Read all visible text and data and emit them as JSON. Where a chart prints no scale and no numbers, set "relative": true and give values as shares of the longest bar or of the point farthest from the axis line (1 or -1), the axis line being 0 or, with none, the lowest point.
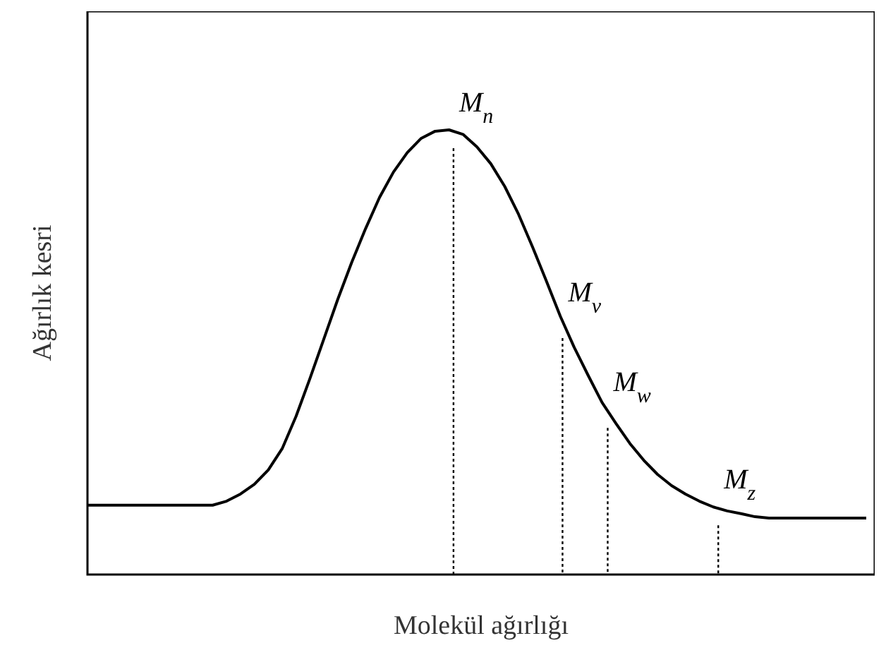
{
  "chart_data": {
    "type": "line",
    "relative": true,
    "xlabel": "Molekül ağırlığı",
    "ylabel": "Ağırlık kesri",
    "categories": [
      null,
      null,
      null,
      null,
      null,
      null,
      null,
      null,
      null,
      null,
      null,
      null,
      null,
      null,
      null,
      null,
      null,
      null,
      null,
      null,
      null,
      null,
      null,
      null,
      null,
      null,
      null,
      null,
      null,
      null,
      null,
      null,
      null,
      null,
      null,
      null,
      null,
      null,
      null,
      null,
      null,
      null,
      null,
      null,
      null,
      null,
      null,
      null,
      null,
      null,
      null,
      null,
      null,
      null,
      null,
      null,
      null
    ],
    "series": [
      {
        "color": "#000000",
        "values": [
          0.156,
          0.156,
          0.156,
          0.156,
          0.156,
          0.156,
          0.156,
          0.156,
          0.156,
          0.156,
          0.165,
          0.181,
          0.203,
          0.235,
          0.283,
          0.356,
          0.441,
          0.53,
          0.619,
          0.702,
          0.778,
          0.848,
          0.905,
          0.949,
          0.981,
          0.997,
          1,
          0.99,
          0.962,
          0.924,
          0.873,
          0.81,
          0.737,
          0.66,
          0.581,
          0.511,
          0.448,
          0.387,
          0.34,
          0.295,
          0.257,
          0.225,
          0.2,
          0.181,
          0.165,
          0.152,
          0.143,
          0.137,
          0.13,
          0.127,
          0.127,
          0.127,
          0.127,
          0.127,
          0.127,
          0.127,
          0.127
        ]
      }
    ],
    "annotations": [
      "M$_{n}$",
      "M$_{v}$",
      "M$_{w}$",
      "M$_{z}$"
    ]
  }
}
